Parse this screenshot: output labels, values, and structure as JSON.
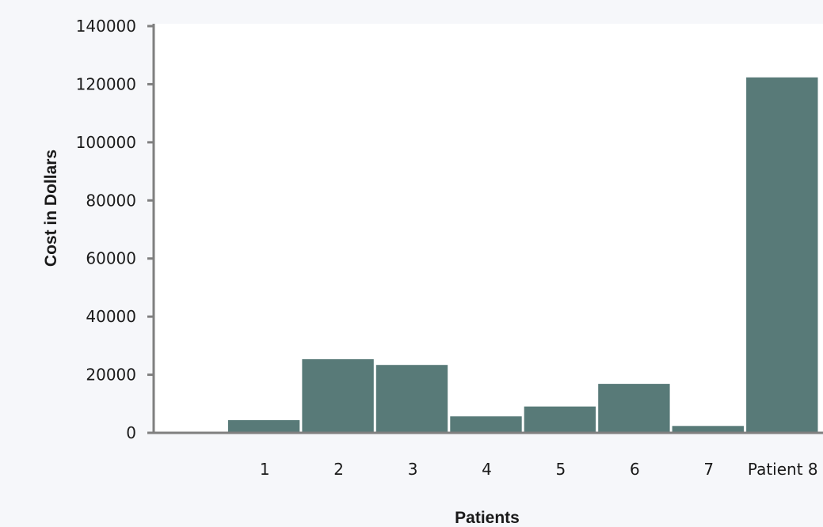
{
  "chart_data": {
    "type": "bar",
    "title": "",
    "xlabel": "Patients",
    "ylabel": "Cost in Dollars",
    "categories": [
      "",
      "1",
      "2",
      "3",
      "4",
      "5",
      "6",
      "7",
      "Patient 8"
    ],
    "values": [
      0,
      4500,
      25500,
      23500,
      5800,
      9200,
      17000,
      2500,
      122500
    ],
    "ylim": [
      0,
      140000
    ],
    "yticks": [
      "0",
      "20000",
      "40000",
      "60000",
      "80000",
      "100000",
      "120000",
      "140000"
    ],
    "grid": false,
    "legend": "none",
    "colors": {
      "bar": "#587a78",
      "bar_edge": "#ffffff",
      "axis": "#7f7f7f",
      "plot_bg": "#ffffff",
      "page_bg": "#f6f7fa",
      "text": "#1a1a1a"
    }
  }
}
